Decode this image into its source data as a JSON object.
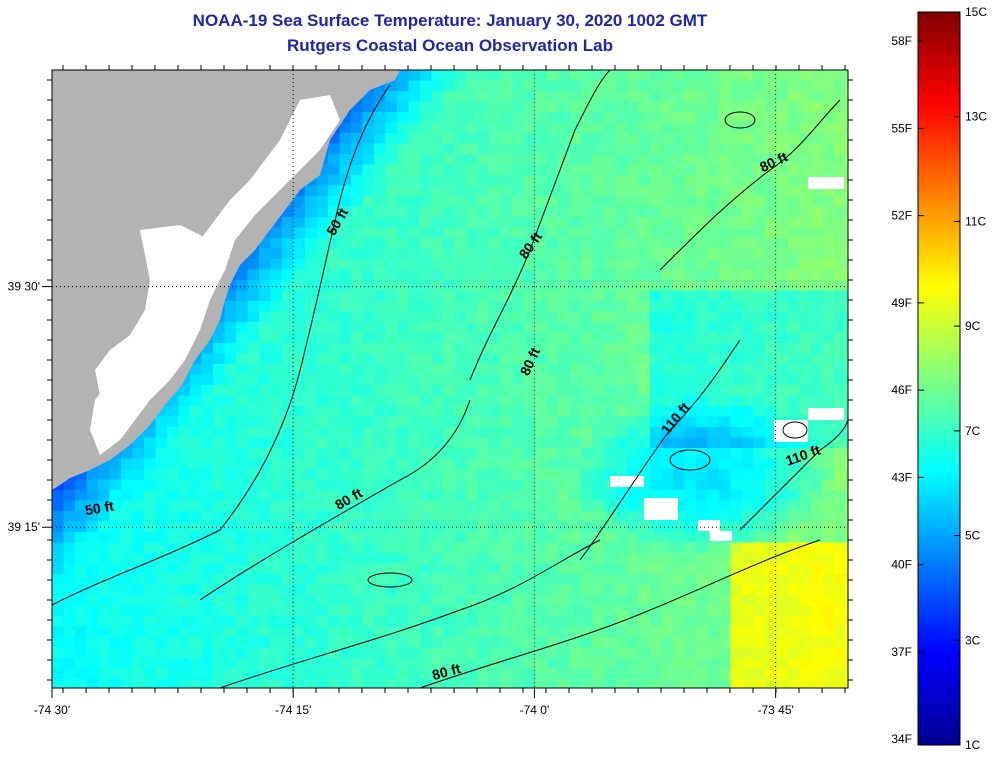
{
  "title": "NOAA-19 Sea Surface Temperature:  January 30, 2020 1002 GMT",
  "subtitle": "Rutgers Coastal Ocean Observation Lab",
  "map": {
    "lon_range": [
      -74.5,
      -73.675
    ],
    "lat_range": [
      39.083,
      39.725
    ],
    "lon_ticks": [
      {
        "value": -74.5,
        "label": "-74 30'"
      },
      {
        "value": -74.25,
        "label": "-74 15'"
      },
      {
        "value": -74.0,
        "label": "-74 0'"
      },
      {
        "value": -73.75,
        "label": "-73 45'"
      }
    ],
    "lat_ticks": [
      {
        "value": 39.5,
        "label": "39 30'"
      },
      {
        "value": 39.25,
        "label": "39 15'"
      }
    ],
    "land_color": "#b3b3b3",
    "nodata_color": "#ffffff",
    "contour_labels": [
      {
        "text": "50 ft",
        "lon": -74.2,
        "lat": 39.565,
        "rotate": -60
      },
      {
        "text": "50 ft",
        "lon": -74.45,
        "lat": 39.265,
        "rotate": -10
      },
      {
        "text": "80 ft",
        "lon": -74.0,
        "lat": 39.54,
        "rotate": -55
      },
      {
        "text": "80 ft",
        "lon": -73.75,
        "lat": 39.625,
        "rotate": -25
      },
      {
        "text": "80 ft",
        "lon": -74.0,
        "lat": 39.42,
        "rotate": -65
      },
      {
        "text": "80 ft",
        "lon": -74.19,
        "lat": 39.275,
        "rotate": -30
      },
      {
        "text": "80 ft",
        "lon": -74.09,
        "lat": 39.095,
        "rotate": -15
      },
      {
        "text": "110 ft",
        "lon": -73.85,
        "lat": 39.36,
        "rotate": -50
      },
      {
        "text": "110 ft",
        "lon": -73.72,
        "lat": 39.32,
        "rotate": -20
      }
    ]
  },
  "colorbar": {
    "min_c": 1,
    "max_c": 15,
    "c_labels": [
      "15C",
      "13C",
      "11C",
      "9C",
      "7C",
      "5C",
      "3C",
      "1C"
    ],
    "c_values": [
      15,
      13,
      11,
      9,
      7,
      5,
      3,
      1
    ],
    "f_labels": [
      "58F",
      "55F",
      "52F",
      "49F",
      "46F",
      "43F",
      "40F",
      "37F",
      "34F"
    ],
    "f_values": [
      58,
      55,
      52,
      49,
      46,
      43,
      40,
      37,
      34
    ],
    "colors": [
      "#00008f",
      "#0000ff",
      "#0080ff",
      "#00ffff",
      "#80ff80",
      "#ffff00",
      "#ff8000",
      "#ff0000",
      "#800000"
    ]
  }
}
